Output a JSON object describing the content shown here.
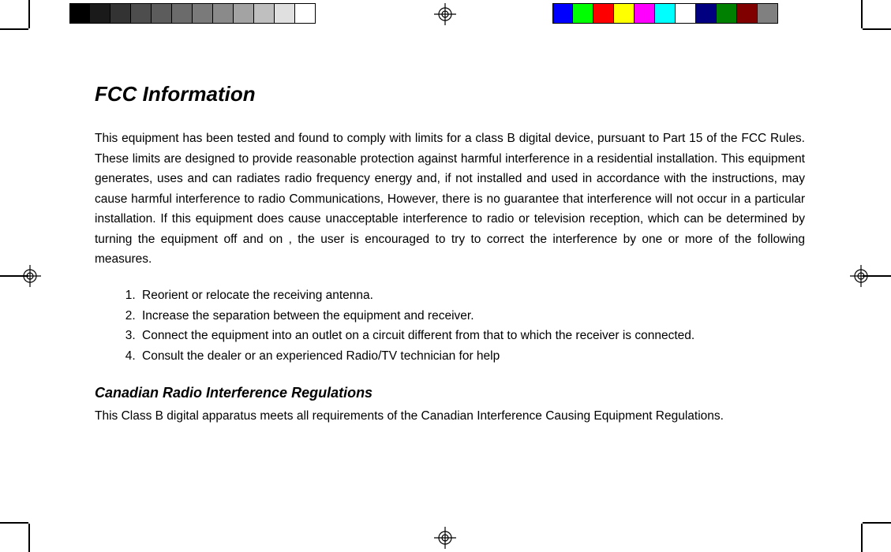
{
  "grayscale_bars": [
    "#000000",
    "#1a1a1a",
    "#333333",
    "#4d4d4d",
    "#5c5c5c",
    "#6b6b6b",
    "#7a7a7a",
    "#8a8a8a",
    "#a3a3a3",
    "#bfbfbf",
    "#e0e0e0",
    "#ffffff"
  ],
  "color_bars": [
    "#0000ff",
    "#00ff00",
    "#ff0000",
    "#ffff00",
    "#ff00ff",
    "#00ffff",
    "#ffffff",
    "#000080",
    "#008000",
    "#800000",
    "#808080"
  ],
  "registration_mid_y": 336,
  "heading": "FCC Information",
  "paragraph": "This equipment has been tested and found to comply with limits for a class B digital device, pursuant to Part 15 of the FCC Rules. These limits are designed to provide reasonable protection against harmful interference in a residential installation. This equipment generates, uses and can radiates radio frequency energy and, if not installed and used in accordance with the instructions, may cause harmful interference to radio Communications, However, there is no guarantee that interference will not occur in a particular installation. If this equipment does cause unacceptable interference to radio or television reception, which can be determined by turning the equipment off and on , the user is encouraged to try to correct the interference by one or more of the following measures.",
  "measures": [
    "Reorient or relocate the receiving antenna.",
    "Increase the separation between the equipment and receiver.",
    "Connect the equipment into an outlet on a circuit different from that to which the receiver is connected.",
    "Consult the dealer or an experienced Radio/TV technician for help"
  ],
  "subheading": "Canadian Radio Interference Regulations",
  "sub_paragraph": "This Class B digital apparatus meets all requirements of the Canadian Interference Causing Equipment Regulations."
}
